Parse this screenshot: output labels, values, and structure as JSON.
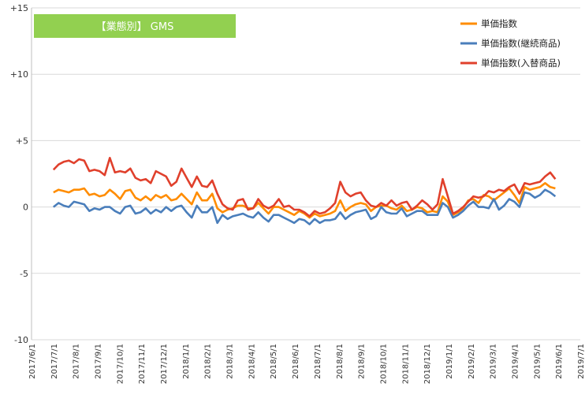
{
  "chart_data": {
    "type": "line",
    "title": "【業態別】 GMS",
    "title_bg_color": "#92d050",
    "ylim": [
      -10,
      15
    ],
    "yticks": [
      {
        "value": 15,
        "label": "+15"
      },
      {
        "value": 10,
        "label": "+10"
      },
      {
        "value": 5,
        "label": "+5"
      },
      {
        "value": 0,
        "label": "0"
      },
      {
        "value": -5,
        "label": "-5"
      },
      {
        "value": -10,
        "label": "-10"
      }
    ],
    "xlabels": [
      "2017/6/1",
      "2017/7/1",
      "2017/8/1",
      "2017/9/1",
      "2017/10/1",
      "2017/11/1",
      "2017/12/1",
      "2018/1/1",
      "2018/2/1",
      "2018/3/1",
      "2018/4/1",
      "2018/5/1",
      "2018/6/1",
      "2018/7/1",
      "2018/8/1",
      "2018/9/1",
      "2018/10/1",
      "2018/11/1",
      "2018/12/1",
      "2019/1/1",
      "2019/2/1",
      "2019/3/1",
      "2019/4/1",
      "2019/5/1",
      "2019/6/1",
      "2019/7/1"
    ],
    "x_start_month_index": 1,
    "x_step_months": 0.2333,
    "grid": true,
    "legend_position": "top-right",
    "series": [
      {
        "name": "単価指数",
        "color": "#ff8c00",
        "values": [
          1.1,
          1.3,
          1.2,
          1.1,
          1.3,
          1.3,
          1.4,
          0.9,
          1.0,
          0.8,
          0.9,
          1.3,
          1.0,
          0.6,
          1.2,
          1.3,
          0.7,
          0.5,
          0.8,
          0.5,
          0.9,
          0.7,
          0.9,
          0.5,
          0.6,
          1.0,
          0.6,
          0.2,
          1.1,
          0.5,
          0.5,
          1.0,
          -0.1,
          -0.4,
          -0.2,
          -0.1,
          0.1,
          0.1,
          -0.1,
          -0.1,
          0.3,
          -0.1,
          -0.5,
          0.0,
          0.0,
          -0.2,
          -0.4,
          -0.6,
          -0.3,
          -0.5,
          -0.8,
          -0.5,
          -0.7,
          -0.6,
          -0.5,
          -0.3,
          0.5,
          -0.3,
          0.0,
          0.2,
          0.3,
          0.2,
          -0.3,
          0.0,
          0.1,
          0.1,
          -0.1,
          -0.2,
          0.1,
          -0.3,
          -0.2,
          0.0,
          -0.1,
          -0.4,
          -0.3,
          -0.4,
          0.8,
          0.4,
          -0.6,
          -0.4,
          -0.1,
          0.5,
          0.6,
          0.3,
          0.9,
          0.8,
          0.5,
          0.8,
          1.1,
          1.4,
          0.9,
          0.3,
          1.5,
          1.3,
          1.4,
          1.5,
          1.8,
          1.5,
          1.4
        ]
      },
      {
        "name": "単価指数(継続商品)",
        "color": "#4a7ebb",
        "values": [
          0.0,
          0.3,
          0.1,
          0.0,
          0.4,
          0.3,
          0.2,
          -0.3,
          -0.1,
          -0.2,
          0.0,
          0.0,
          -0.3,
          -0.5,
          0.0,
          0.1,
          -0.5,
          -0.4,
          -0.1,
          -0.5,
          -0.2,
          -0.4,
          0.0,
          -0.3,
          0.0,
          0.1,
          -0.4,
          -0.8,
          0.1,
          -0.4,
          -0.4,
          0.0,
          -1.2,
          -0.6,
          -0.9,
          -0.7,
          -0.6,
          -0.5,
          -0.7,
          -0.8,
          -0.4,
          -0.8,
          -1.1,
          -0.6,
          -0.6,
          -0.8,
          -1.0,
          -1.2,
          -0.9,
          -1.0,
          -1.3,
          -0.9,
          -1.2,
          -1.0,
          -1.0,
          -0.9,
          -0.4,
          -0.9,
          -0.6,
          -0.4,
          -0.3,
          -0.2,
          -0.9,
          -0.7,
          0.0,
          -0.4,
          -0.5,
          -0.5,
          -0.1,
          -0.7,
          -0.5,
          -0.3,
          -0.3,
          -0.6,
          -0.6,
          -0.6,
          0.3,
          0.0,
          -0.8,
          -0.6,
          -0.3,
          0.1,
          0.4,
          0.0,
          0.0,
          -0.1,
          0.6,
          -0.2,
          0.1,
          0.6,
          0.4,
          0.0,
          1.1,
          1.0,
          0.7,
          0.9,
          1.3,
          1.1,
          0.8
        ]
      },
      {
        "name": "単価指数(入替商品)",
        "color": "#e0402c",
        "values": [
          2.8,
          3.2,
          3.4,
          3.5,
          3.3,
          3.6,
          3.5,
          2.7,
          2.8,
          2.7,
          2.4,
          3.7,
          2.6,
          2.7,
          2.6,
          2.9,
          2.2,
          2.0,
          2.1,
          1.8,
          2.7,
          2.5,
          2.3,
          1.6,
          1.9,
          2.9,
          2.2,
          1.5,
          2.3,
          1.6,
          1.5,
          2.0,
          1.0,
          0.2,
          -0.1,
          -0.2,
          0.5,
          0.6,
          -0.2,
          -0.1,
          0.6,
          0.1,
          -0.1,
          0.1,
          0.6,
          0.0,
          0.1,
          -0.2,
          -0.2,
          -0.4,
          -0.7,
          -0.3,
          -0.5,
          -0.4,
          -0.1,
          0.3,
          1.9,
          1.1,
          0.8,
          1.0,
          1.1,
          0.5,
          0.1,
          0.0,
          0.3,
          0.1,
          0.5,
          0.1,
          0.3,
          0.4,
          -0.2,
          0.1,
          0.5,
          0.2,
          -0.2,
          0.2,
          2.1,
          0.8,
          -0.5,
          -0.3,
          0.0,
          0.4,
          0.8,
          0.7,
          0.8,
          1.2,
          1.1,
          1.3,
          1.2,
          1.5,
          1.7,
          1.0,
          1.8,
          1.7,
          1.8,
          1.9,
          2.3,
          2.6,
          2.1
        ]
      }
    ]
  }
}
